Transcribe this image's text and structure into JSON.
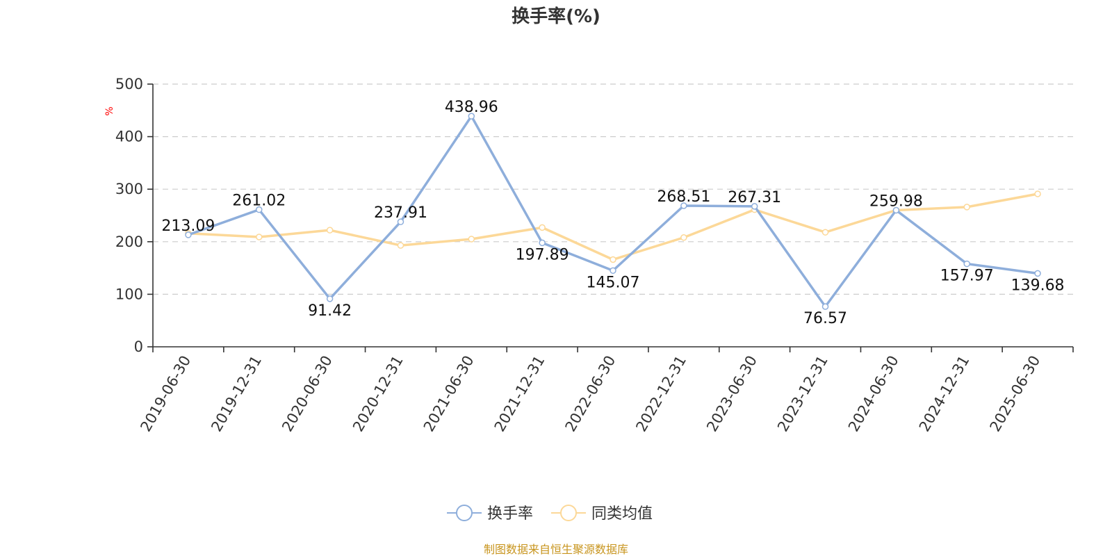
{
  "chart_data": {
    "type": "line",
    "title": "换手率(%)",
    "ylabel": "%",
    "xlabel": "",
    "ylim": [
      0,
      500
    ],
    "yticks": [
      0,
      100,
      200,
      300,
      400,
      500
    ],
    "grid": true,
    "legend_position": "bottom",
    "categories": [
      "2019-06-30",
      "2019-12-31",
      "2020-06-30",
      "2020-12-31",
      "2021-06-30",
      "2021-12-31",
      "2022-06-30",
      "2022-12-31",
      "2023-06-30",
      "2023-12-31",
      "2024-06-30",
      "2024-12-31",
      "2025-06-30"
    ],
    "series": [
      {
        "name": "换手率",
        "color": "#8eaedb",
        "values": [
          213.09,
          261.02,
          91.42,
          237.91,
          438.96,
          197.89,
          145.07,
          268.51,
          267.31,
          76.57,
          259.98,
          157.97,
          139.68
        ],
        "labels": [
          "213.09",
          "261.02",
          "91.42",
          "237.91",
          "438.96",
          "197.89",
          "145.07",
          "268.51",
          "267.31",
          "76.57",
          "259.98",
          "157.97",
          "139.68"
        ]
      },
      {
        "name": "同类均值",
        "color": "#fcd898",
        "values": [
          216,
          209,
          222,
          193,
          205,
          227,
          166,
          208,
          261,
          218,
          260,
          266,
          291
        ]
      }
    ]
  },
  "source": "制图数据来自恒生聚源数据库",
  "colors": {
    "unit": "#ff0000",
    "source": "#c8951e",
    "axis": "#333333",
    "grid": "#cccccc"
  }
}
